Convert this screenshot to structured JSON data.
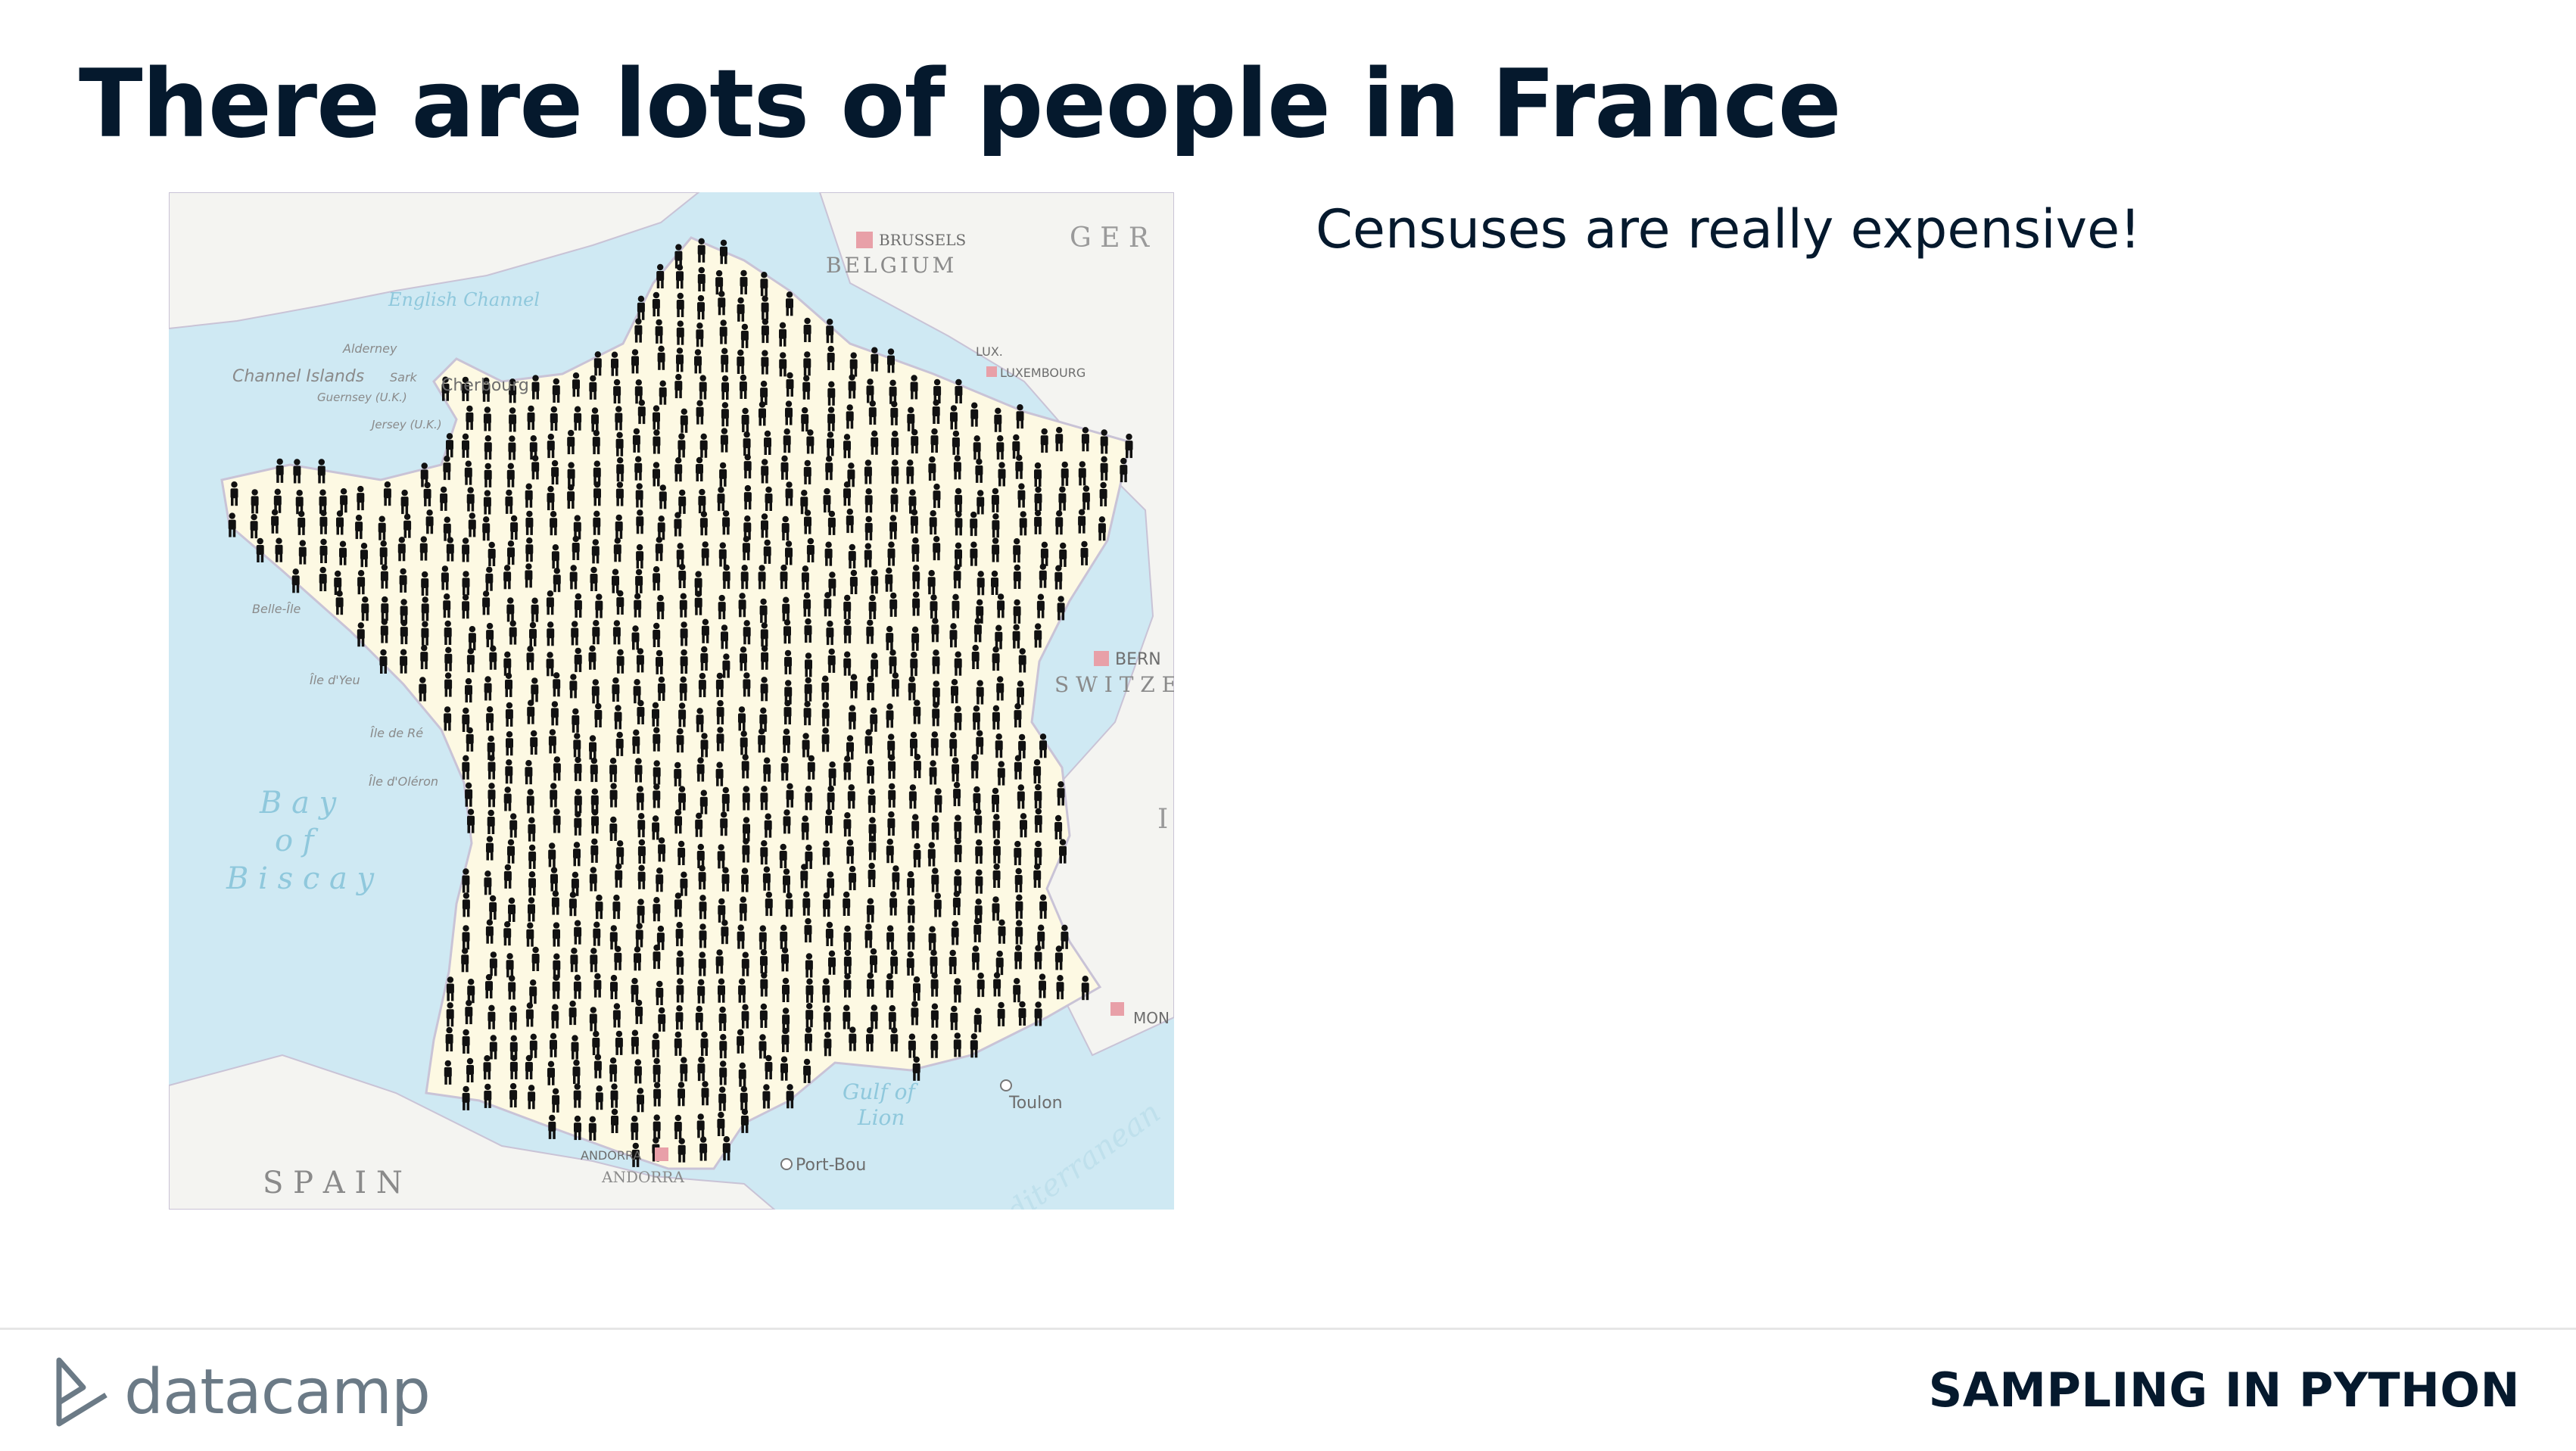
{
  "slide": {
    "title": "There are lots of people in France",
    "bullet": "Censuses are really expensive!"
  },
  "map": {
    "labels": {
      "brussels": "BRUSSELS",
      "belgium": "BELGIUM",
      "germany": "G E R",
      "english_channel": "English Channel",
      "alderney": "Alderney",
      "channel_islands": "Channel Islands",
      "sark": "Sark",
      "guernsey": "Guernsey (U.K.)",
      "jersey": "Jersey (U.K.)",
      "cherbourg": "Cherbourg",
      "lux": "LUX.",
      "luxembourg": "LUXEMBOURG",
      "belle_ile": "Belle-Île",
      "ile_dyeu": "Île d'Yeu",
      "ile_de_re": "Île de Ré",
      "ile_doleron": "Île d'Oléron",
      "bay": "B a y",
      "of": "o f",
      "biscay": "B i s c a y",
      "bern": "BERN",
      "switzerland": "S W I T Z E",
      "italy": "I",
      "mon": "MON",
      "gulf": "Gulf of",
      "lion": "Lion",
      "toulon": "Toulon",
      "port_bou": "Port-Bou",
      "andorra_city": "ANDORRA",
      "andorra": "ANDORRA",
      "spain": "S P A I N",
      "mediterranean": "Mediterranean"
    }
  },
  "footer": {
    "brand": "datacamp",
    "course": "SAMPLING IN PYTHON"
  },
  "colors": {
    "navy": "#05192d",
    "sea": "#cfe9f3",
    "land": "#fdf9e3",
    "neighbor": "#f4f4f1",
    "capital": "#e8a0a8"
  }
}
